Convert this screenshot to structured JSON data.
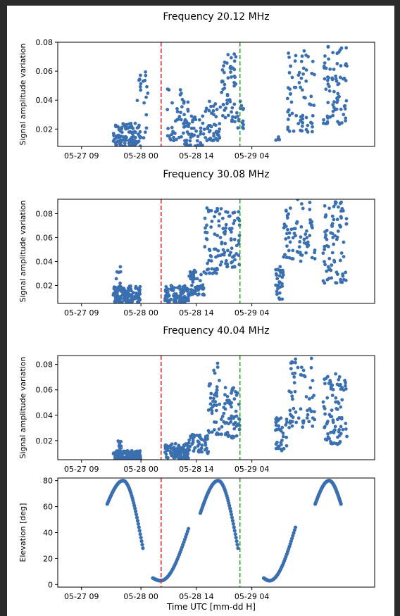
{
  "figure": {
    "xlabel": "Time UTC [mm-dd H]",
    "x_tick_labels": [
      "05-27 09",
      "05-28 00",
      "05-28 14",
      "05-29 04"
    ],
    "colors": {
      "points": "#3a6fb0",
      "red_line": "#d62728",
      "green_line": "#2ca02c"
    },
    "vlines": [
      {
        "name": "red-vline",
        "x_hours": 53.1,
        "color": "#d62728"
      },
      {
        "name": "green-vline",
        "x_hours": 73.0,
        "color": "#2ca02c"
      }
    ]
  },
  "chart_data": [
    {
      "type": "scatter",
      "title": "Frequency 20.12 MHz",
      "ylabel": "Signal amplitude variation",
      "xlim_hours": [
        27,
        107
      ],
      "x_ticks_hours": [
        33,
        48,
        62,
        76
      ],
      "ylim": [
        0.008,
        0.08
      ],
      "y_ticks": [
        0.02,
        0.04,
        0.06,
        0.08
      ],
      "y_tick_labels": [
        "0.02",
        "0.04",
        "0.06",
        "0.08"
      ],
      "clusters": [
        {
          "x_range": [
            41.0,
            48.0
          ],
          "y_range": [
            0.008,
            0.024
          ],
          "count": 110
        },
        {
          "x_range": [
            47.0,
            50.0
          ],
          "y_range": [
            0.012,
            0.06
          ],
          "count": 20
        },
        {
          "x_range": [
            54.5,
            60.0
          ],
          "y_range": [
            0.012,
            0.048
          ],
          "count": 45
        },
        {
          "x_range": [
            59.0,
            64.0
          ],
          "y_range": [
            0.008,
            0.03
          ],
          "count": 45
        },
        {
          "x_range": [
            64.0,
            68.0
          ],
          "y_range": [
            0.012,
            0.04
          ],
          "count": 45
        },
        {
          "x_range": [
            68.0,
            72.0
          ],
          "y_range": [
            0.025,
            0.072
          ],
          "count": 55
        },
        {
          "x_range": [
            72.0,
            74.0
          ],
          "y_range": [
            0.02,
            0.04
          ],
          "count": 15
        },
        {
          "x_range": [
            82.0,
            83.0
          ],
          "y_range": [
            0.012,
            0.017
          ],
          "count": 6
        },
        {
          "x_range": [
            85.0,
            92.0
          ],
          "y_range": [
            0.018,
            0.079
          ],
          "count": 70
        },
        {
          "x_range": [
            94.0,
            100.0
          ],
          "y_range": [
            0.023,
            0.079
          ],
          "count": 75
        }
      ]
    },
    {
      "type": "scatter",
      "title": "Frequency 30.08 MHz",
      "ylabel": "Signal amplitude variation",
      "xlim_hours": [
        27,
        107
      ],
      "x_ticks_hours": [
        33,
        48,
        62,
        76
      ],
      "ylim": [
        0.005,
        0.092
      ],
      "y_ticks": [
        0.02,
        0.04,
        0.06,
        0.08
      ],
      "y_tick_labels": [
        "0.02",
        "0.04",
        "0.06",
        "0.08"
      ],
      "clusters": [
        {
          "x_range": [
            41.0,
            48.0
          ],
          "y_range": [
            0.006,
            0.02
          ],
          "count": 120
        },
        {
          "x_range": [
            41.5,
            43.0
          ],
          "y_range": [
            0.015,
            0.038
          ],
          "count": 12
        },
        {
          "x_range": [
            54.0,
            60.0
          ],
          "y_range": [
            0.006,
            0.02
          ],
          "count": 110
        },
        {
          "x_range": [
            60.0,
            64.0
          ],
          "y_range": [
            0.012,
            0.035
          ],
          "count": 60
        },
        {
          "x_range": [
            64.0,
            68.0
          ],
          "y_range": [
            0.03,
            0.085
          ],
          "count": 50
        },
        {
          "x_range": [
            68.0,
            73.0
          ],
          "y_range": [
            0.035,
            0.085
          ],
          "count": 65
        },
        {
          "x_range": [
            82.0,
            84.0
          ],
          "y_range": [
            0.008,
            0.038
          ],
          "count": 35
        },
        {
          "x_range": [
            84.0,
            92.0
          ],
          "y_range": [
            0.04,
            0.092
          ],
          "count": 70
        },
        {
          "x_range": [
            94.0,
            100.0
          ],
          "y_range": [
            0.022,
            0.09
          ],
          "count": 80
        }
      ]
    },
    {
      "type": "scatter",
      "title": "Frequency 40.04 MHz",
      "ylabel": "Signal amplitude variation",
      "xlim_hours": [
        27,
        107
      ],
      "x_ticks_hours": [
        33,
        48,
        62,
        76
      ],
      "ylim": [
        0.005,
        0.087
      ],
      "y_ticks": [
        0.02,
        0.04,
        0.06,
        0.08
      ],
      "y_tick_labels": [
        "0.02",
        "0.04",
        "0.06",
        "0.08"
      ],
      "clusters": [
        {
          "x_range": [
            41.0,
            48.0
          ],
          "y_range": [
            0.005,
            0.012
          ],
          "count": 130
        },
        {
          "x_range": [
            41.5,
            43.0
          ],
          "y_range": [
            0.012,
            0.021
          ],
          "count": 8
        },
        {
          "x_range": [
            54.0,
            60.0
          ],
          "y_range": [
            0.006,
            0.018
          ],
          "count": 110
        },
        {
          "x_range": [
            60.0,
            65.0
          ],
          "y_range": [
            0.01,
            0.025
          ],
          "count": 55
        },
        {
          "x_range": [
            65.0,
            68.5
          ],
          "y_range": [
            0.025,
            0.083
          ],
          "count": 45
        },
        {
          "x_range": [
            68.5,
            73.0
          ],
          "y_range": [
            0.022,
            0.062
          ],
          "count": 60
        },
        {
          "x_range": [
            82.0,
            85.0
          ],
          "y_range": [
            0.012,
            0.04
          ],
          "count": 35
        },
        {
          "x_range": [
            85.0,
            92.0
          ],
          "y_range": [
            0.03,
            0.085
          ],
          "count": 60
        },
        {
          "x_range": [
            94.0,
            100.0
          ],
          "y_range": [
            0.017,
            0.073
          ],
          "count": 85
        }
      ]
    },
    {
      "type": "line",
      "title": "",
      "ylabel": "Elevation [deg]",
      "xlim_hours": [
        27,
        107
      ],
      "x_ticks_hours": [
        33,
        48,
        62,
        76
      ],
      "ylim": [
        -2,
        82
      ],
      "y_ticks": [
        0,
        20,
        40,
        60,
        80
      ],
      "y_tick_labels": [
        "0",
        "20",
        "40",
        "60",
        "80"
      ],
      "series": [
        {
          "x": [
            39.5,
            43.5,
            48.5
          ],
          "y": [
            62,
            80,
            28
          ]
        },
        {
          "x": [
            51.0,
            53.0,
            60.0
          ],
          "y": [
            5,
            3,
            43
          ]
        },
        {
          "x": [
            63.0,
            67.5,
            72.5
          ],
          "y": [
            55,
            80,
            28
          ]
        },
        {
          "x": [
            79.0,
            80.5,
            87.0
          ],
          "y": [
            5,
            3,
            44
          ]
        },
        {
          "x": [
            92.0,
            95.5,
            98.5
          ],
          "y": [
            62,
            80,
            62
          ]
        }
      ]
    }
  ]
}
